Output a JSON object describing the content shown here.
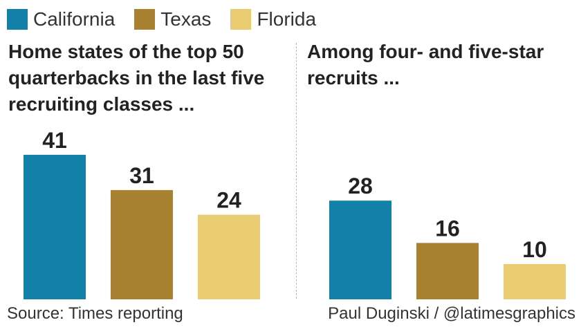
{
  "legend": [
    {
      "label": "California",
      "color": "#1380a8"
    },
    {
      "label": "Texas",
      "color": "#a88230"
    },
    {
      "label": "Florida",
      "color": "#e9cc72"
    }
  ],
  "chart_data": [
    {
      "type": "bar",
      "title": "Home states of the top 50 quarterbacks in the last five recruiting classes ...",
      "categories": [
        "California",
        "Texas",
        "Florida"
      ],
      "values": [
        41,
        31,
        24
      ]
    },
    {
      "type": "bar",
      "title": "Among four- and five-star recruits ...",
      "categories": [
        "California",
        "Texas",
        "Florida"
      ],
      "values": [
        28,
        16,
        10
      ]
    }
  ],
  "footer": {
    "source": "Source: Times reporting",
    "credit": "Paul Duginski / @latimesgraphics"
  }
}
